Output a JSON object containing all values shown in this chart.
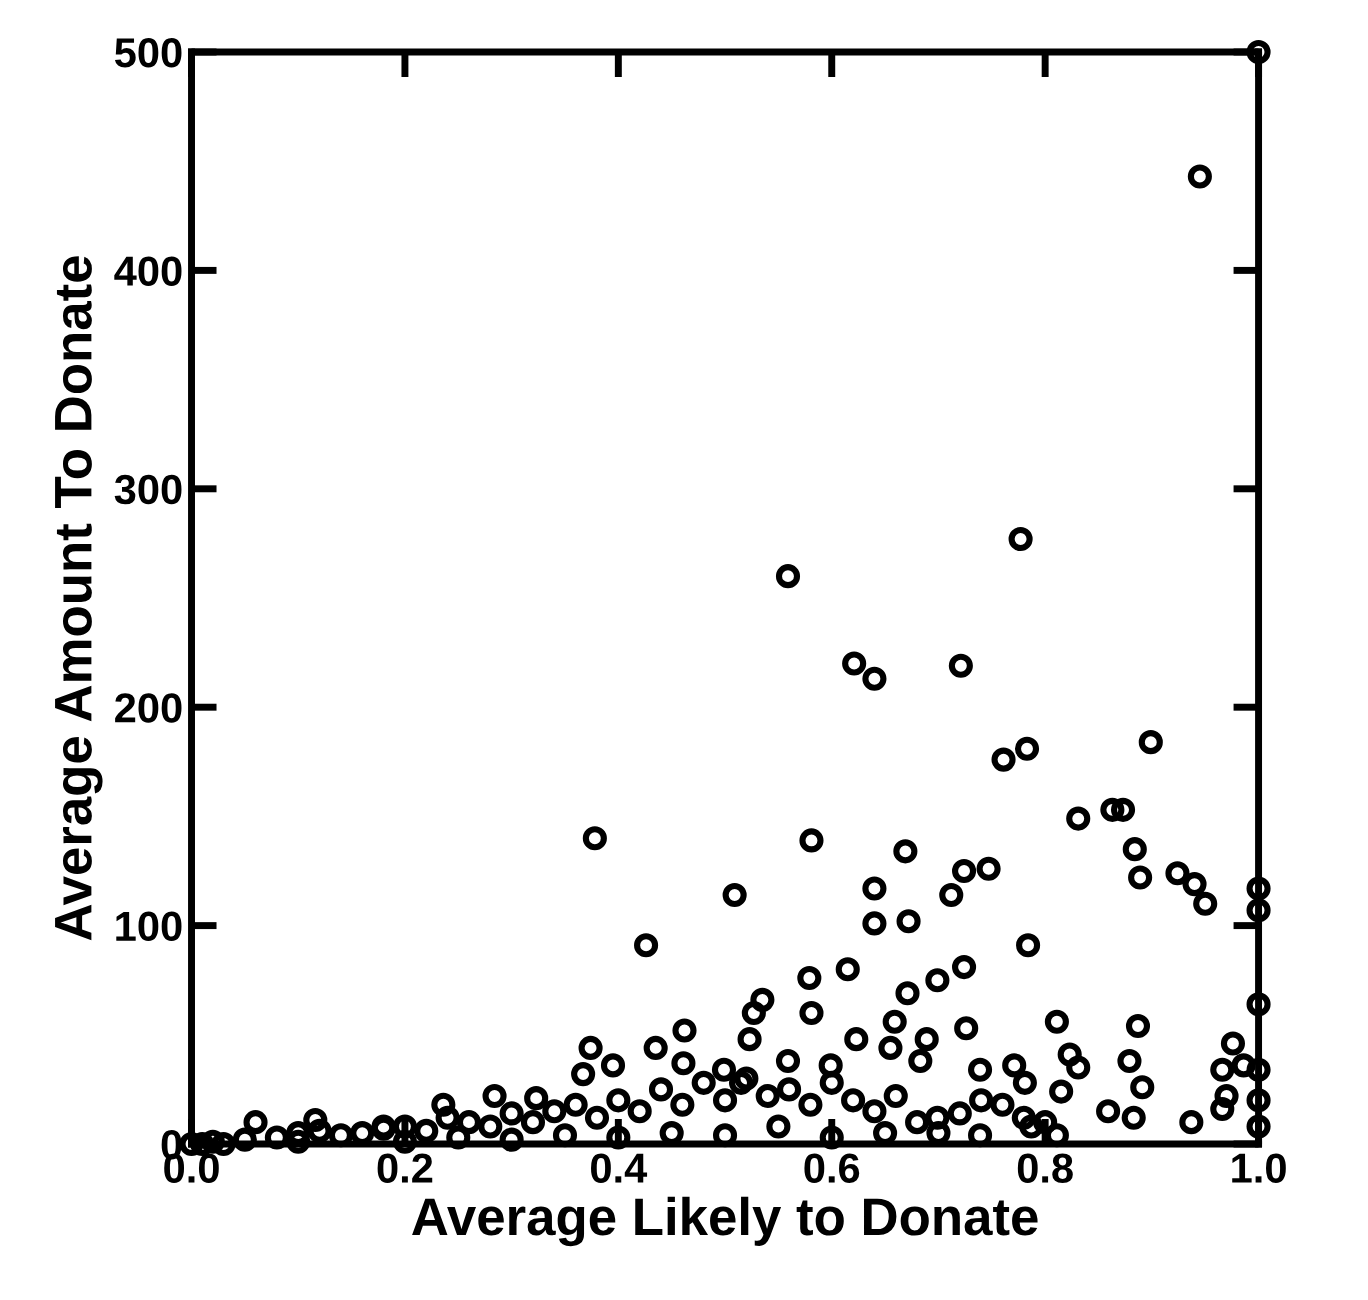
{
  "chart_data": {
    "type": "scatter",
    "xlabel": "Average Likely to Donate",
    "ylabel": "Average Amount To Donate",
    "xlim": [
      0,
      1
    ],
    "ylim": [
      0,
      500
    ],
    "xticks": [
      {
        "value": 0,
        "label": "0.0"
      },
      {
        "value": 0.2,
        "label": "0.2"
      },
      {
        "value": 0.4,
        "label": "0.4"
      },
      {
        "value": 0.6,
        "label": "0.6"
      },
      {
        "value": 0.8,
        "label": "0.8"
      },
      {
        "value": 1,
        "label": "1.0"
      }
    ],
    "yticks": [
      0,
      100,
      200,
      300,
      400,
      500
    ],
    "grid": false,
    "legend": false,
    "marker": "circle",
    "series": [
      {
        "color": "#000000",
        "x": [
          1.0,
          0.945,
          0.559,
          0.777,
          0.621,
          0.64,
          0.721,
          0.899,
          0.761,
          0.783,
          0.831,
          0.863,
          0.873,
          0.884,
          0.889,
          0.924,
          0.94,
          0.95,
          1.0,
          1.0,
          1.0,
          0.378,
          0.581,
          0.669,
          0.509,
          0.426,
          0.64,
          0.64,
          0.672,
          0.712,
          0.724,
          0.747,
          0.784,
          0.724,
          0.699,
          0.615,
          0.579,
          0.581,
          0.535,
          0.527,
          0.671,
          0.659,
          0.726,
          0.811,
          0.887,
          0.823,
          0.831,
          0.879,
          0.891,
          0.976,
          0.966,
          0.986,
          1.0,
          0.462,
          0.461,
          0.435,
          0.395,
          0.374,
          0.367,
          0.623,
          0.655,
          0.689,
          0.683,
          0.739,
          0.771,
          0.781,
          0.815,
          0.859,
          0.883,
          0.937,
          0.966,
          0.97,
          1.0,
          1.0,
          0.699,
          0.787,
          0.739,
          0.811,
          0.523,
          0.559,
          0.599,
          0.499,
          0.515,
          0.06,
          0.116,
          0.284,
          0.323,
          0.236,
          0.18,
          0.0,
          0.01,
          0.02,
          0.03,
          0.05,
          0.08,
          0.1,
          0.12,
          0.14,
          0.16,
          0.18,
          0.2,
          0.22,
          0.24,
          0.26,
          0.28,
          0.3,
          0.32,
          0.34,
          0.36,
          0.38,
          0.4,
          0.42,
          0.44,
          0.46,
          0.48,
          0.5,
          0.52,
          0.54,
          0.56,
          0.58,
          0.6,
          0.62,
          0.64,
          0.66,
          0.68,
          0.7,
          0.72,
          0.74,
          0.76,
          0.78,
          0.8,
          0.3,
          0.4,
          0.5,
          0.6,
          0.45,
          0.55,
          0.65,
          0.2,
          0.1,
          0.25,
          0.35
        ],
        "values": [
          500,
          443,
          260,
          277,
          220,
          213,
          219,
          184,
          176,
          181,
          149,
          153,
          153,
          135,
          122,
          124,
          119,
          110,
          117,
          107,
          64,
          140,
          139,
          134,
          114,
          91,
          117,
          101,
          102,
          114,
          125,
          126,
          91,
          81,
          75,
          80,
          76,
          60,
          66,
          60,
          69,
          56,
          53,
          56,
          54,
          41,
          35,
          38,
          26,
          46,
          34,
          36,
          34,
          52,
          37,
          44,
          36,
          44,
          32,
          48,
          44,
          48,
          38,
          34,
          36,
          28,
          24,
          15,
          12,
          10,
          16,
          22,
          20,
          8,
          12,
          8,
          4,
          4,
          48,
          38,
          36,
          34,
          28,
          10,
          11,
          22,
          21,
          18,
          8,
          0,
          0,
          1,
          0,
          2,
          3,
          5,
          6,
          4,
          5,
          7,
          8,
          6,
          12,
          10,
          8,
          14,
          10,
          15,
          18,
          12,
          20,
          15,
          25,
          18,
          28,
          20,
          30,
          22,
          25,
          18,
          28,
          20,
          15,
          22,
          10,
          5,
          14,
          20,
          18,
          12,
          10,
          2,
          3,
          4,
          3,
          5,
          8,
          5,
          1,
          1,
          3,
          4
        ]
      }
    ]
  }
}
